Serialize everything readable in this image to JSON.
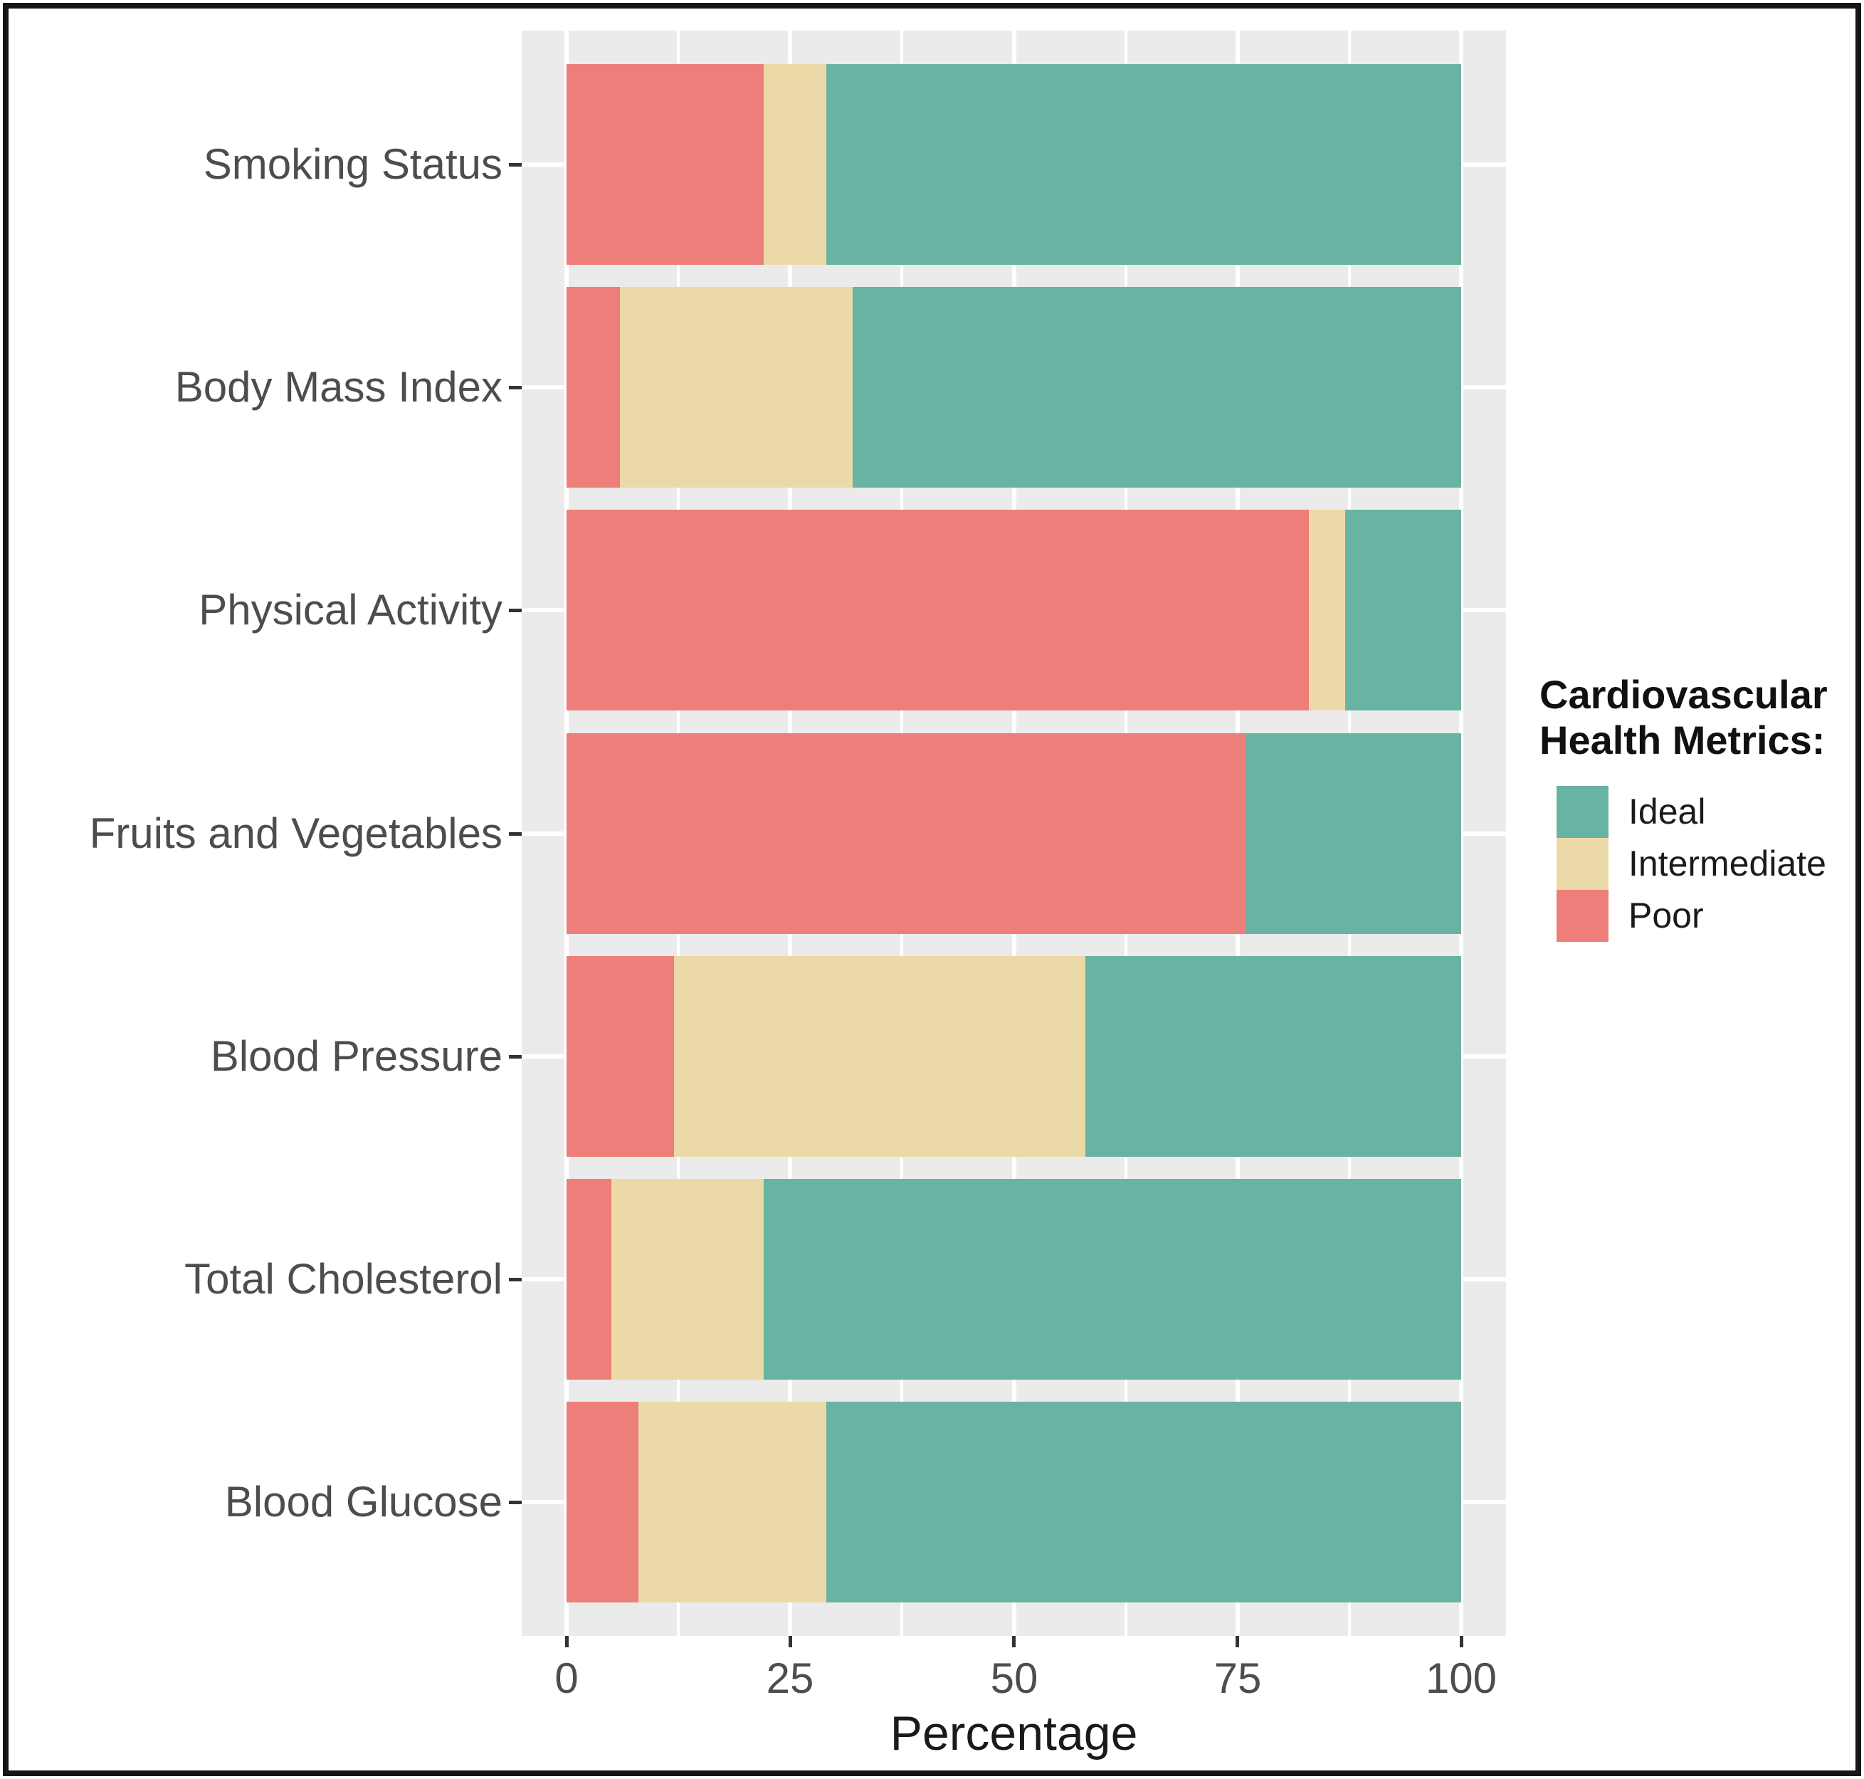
{
  "chart_data": {
    "type": "bar",
    "orientation": "horizontal",
    "stacked": true,
    "title": "",
    "xlabel": "Percentage",
    "ylabel": "",
    "xlim": [
      0,
      100
    ],
    "x_ticks": [
      0,
      25,
      50,
      75,
      100
    ],
    "minor_gridlines": [
      12.5,
      37.5,
      62.5,
      87.5
    ],
    "grid": true,
    "legend_position": "right",
    "categories": [
      "Smoking Status",
      "Body Mass Index",
      "Physical Activity",
      "Fruits and Vegetables",
      "Blood Pressure",
      "Total Cholesterol",
      "Blood Glucose"
    ],
    "series": [
      {
        "name": "Poor",
        "color": "#ED7E79",
        "values": [
          22,
          6,
          83,
          76,
          12,
          5,
          8
        ]
      },
      {
        "name": "Intermediate",
        "color": "#ECD9A8",
        "values": [
          7,
          26,
          4,
          0,
          46,
          17,
          21
        ]
      },
      {
        "name": "Ideal",
        "color": "#69B3A2",
        "values": [
          71,
          68,
          13,
          24,
          42,
          78,
          71
        ]
      }
    ]
  },
  "legend": {
    "title_line1": "Cardiovascular",
    "title_line2": "Health Metrics:",
    "entries": [
      {
        "label": "Ideal",
        "color": "#69B3A2"
      },
      {
        "label": "Intermediate",
        "color": "#ECD9A8"
      },
      {
        "label": "Poor",
        "color": "#ED7E79"
      }
    ]
  },
  "style": {
    "panel_bg": "#EBEBEB",
    "grid_color": "#FFFFFF",
    "axis_text_color": "#4D4D4D",
    "title_color": "#1A1A1A"
  }
}
